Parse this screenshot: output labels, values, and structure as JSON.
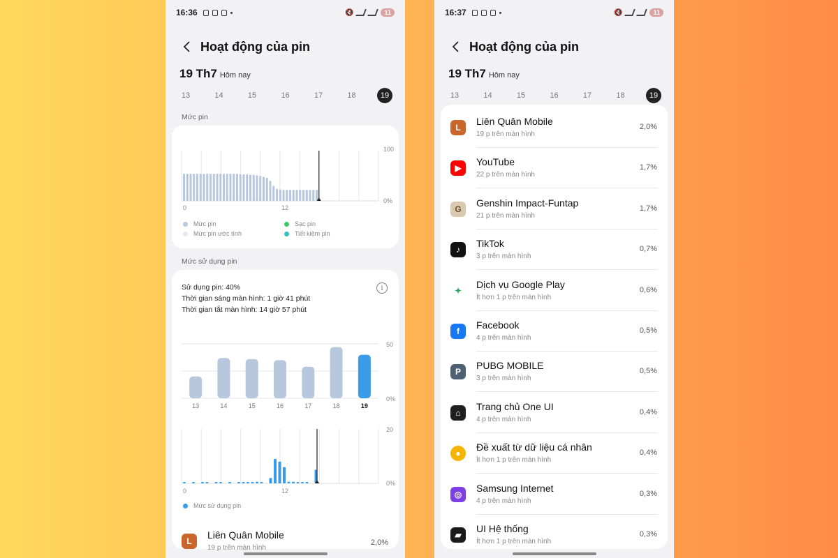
{
  "left": {
    "status": {
      "time": "16:36",
      "battery": "11"
    },
    "header": {
      "title": "Hoạt động của pin"
    },
    "date": {
      "big": "19 Th7",
      "sub": "Hôm nay"
    },
    "days": [
      "13",
      "14",
      "15",
      "16",
      "17",
      "18",
      "19"
    ],
    "battery_section": "Mức pin",
    "battery_chart": {
      "y_labels": [
        "100",
        "0%"
      ],
      "x_labels": [
        "0",
        "12"
      ],
      "levels": [
        54,
        54,
        54,
        54,
        54,
        54,
        54,
        54,
        54,
        54,
        54,
        54,
        54,
        54,
        54,
        54,
        54,
        53,
        53,
        53,
        52,
        52,
        51,
        50,
        48,
        46,
        40,
        30,
        24,
        23,
        22,
        22,
        22,
        22,
        22,
        22,
        22,
        22,
        22,
        22,
        22
      ],
      "legend": [
        {
          "label": "Mức pin",
          "color": "#b7c7dd"
        },
        {
          "label": "Sạc pin",
          "color": "#3fc86a"
        },
        {
          "label": "Mức pin ước tính",
          "color": "#e3e8f0"
        },
        {
          "label": "Tiết kiệm pin",
          "color": "#2ec2c2"
        }
      ]
    },
    "usage_section": "Mức sử dụng pin",
    "usage": {
      "line1": "Sử dụng pin: 40%",
      "line2": "Thời gian sáng màn hình: 1 giờ 41 phút",
      "line3": "Thời gian tắt màn hình: 14 giờ 57 phút",
      "info_icon": "i"
    },
    "daily_chart": {
      "y_labels": [
        "50",
        "0%"
      ],
      "categories": [
        "13",
        "14",
        "15",
        "16",
        "17",
        "18",
        "19"
      ],
      "values": [
        20,
        37,
        36,
        35,
        29,
        47,
        40
      ],
      "ymax": 50,
      "colors": {
        "normal": "#b7c7dd",
        "active": "#3a9be8"
      }
    },
    "hourly_chart": {
      "y_labels": [
        "20",
        "0%"
      ],
      "x_labels": [
        "0",
        "12"
      ],
      "values": [
        0.3,
        0,
        0.4,
        0,
        0.3,
        0.3,
        0,
        0.4,
        0.2,
        0,
        0.3,
        0,
        0.3,
        0.3,
        0.5,
        0.4,
        0.6,
        0.4,
        0,
        2,
        9,
        8,
        6,
        0.6,
        0.6,
        0.5,
        0.5,
        0.3,
        0,
        5
      ],
      "ymax": 20,
      "legend": "Mức sử dụng pin"
    },
    "first_app": {
      "name": "Liên Quân Mobile",
      "sub": "19 p trên màn hình",
      "pct": "2,0%"
    }
  },
  "right": {
    "status": {
      "time": "16:37",
      "battery": "11"
    },
    "header": {
      "title": "Hoạt động của pin"
    },
    "date": {
      "big": "19 Th7",
      "sub": "Hôm nay"
    },
    "days": [
      "13",
      "14",
      "15",
      "16",
      "17",
      "18",
      "19"
    ],
    "apps": [
      {
        "name": "Liên Quân Mobile",
        "sub": "19 p trên màn hình",
        "pct": "2,0%",
        "icon": "game-avatar-icon",
        "color": "#c8662c"
      },
      {
        "name": "YouTube",
        "sub": "22 p trên màn hình",
        "pct": "1,7%",
        "icon": "youtube-icon",
        "color": "#ff0000"
      },
      {
        "name": "Genshin Impact-Funtap",
        "sub": "21 p trên màn hình",
        "pct": "1,7%",
        "icon": "genshin-icon",
        "color": "#d8c9b0"
      },
      {
        "name": "TikTok",
        "sub": "3 p trên màn hình",
        "pct": "0,7%",
        "icon": "tiktok-icon",
        "color": "#111111"
      },
      {
        "name": "Dịch vụ Google Play",
        "sub": "Ít hơn 1 p trên màn hình",
        "pct": "0,6%",
        "icon": "google-play-services-icon",
        "color": "#ffffff"
      },
      {
        "name": "Facebook",
        "sub": "4 p trên màn hình",
        "pct": "0,5%",
        "icon": "facebook-icon",
        "color": "#1877f2"
      },
      {
        "name": "PUBG MOBILE",
        "sub": "3 p trên màn hình",
        "pct": "0,5%",
        "icon": "pubg-icon",
        "color": "#4d6172"
      },
      {
        "name": "Trang chủ One UI",
        "sub": "4 p trên màn hình",
        "pct": "0,4%",
        "icon": "home-icon",
        "color": "#1f1f1f"
      },
      {
        "name": "Đề xuất từ dữ liệu cá nhân",
        "sub": "Ít hơn 1 p trên màn hình",
        "pct": "0,4%",
        "icon": "lightbulb-icon",
        "color": "#f5b400"
      },
      {
        "name": "Samsung Internet",
        "sub": "4 p trên màn hình",
        "pct": "0,3%",
        "icon": "samsung-internet-icon",
        "color": "#7b3fe4"
      },
      {
        "name": "UI Hệ thống",
        "sub": "Ít hơn 1 p trên màn hình",
        "pct": "0,3%",
        "icon": "system-ui-icon",
        "color": "#1a1a1a"
      }
    ]
  }
}
